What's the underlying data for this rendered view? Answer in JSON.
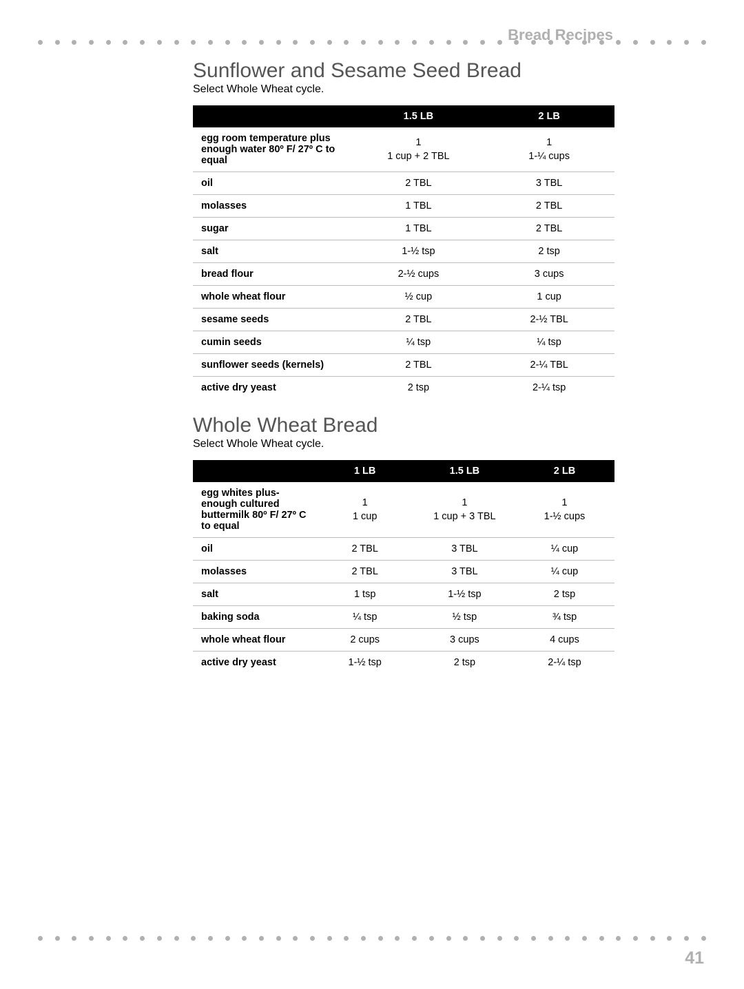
{
  "page": {
    "header_label": "Bread Recipes",
    "page_number": "41",
    "dot_color": "#b0b0b0",
    "dot_count": 40
  },
  "recipe1": {
    "title": "Sunflower and Sesame Seed Bread",
    "subtitle": "Select Whole Wheat cycle.",
    "columns": [
      "",
      "1.5 LB",
      "2 LB"
    ],
    "col_widths": [
      "38%",
      "31%",
      "31%"
    ],
    "rows": [
      {
        "ingredient": "egg room temperature plus enough water 80º F/ 27º C to equal",
        "c15": [
          "1",
          "1 cup + 2 TBL"
        ],
        "c2": [
          "1",
          "1-¼ cups"
        ]
      },
      {
        "ingredient": "oil",
        "c15": "2 TBL",
        "c2": "3 TBL"
      },
      {
        "ingredient": "molasses",
        "c15": "1 TBL",
        "c2": "2 TBL"
      },
      {
        "ingredient": "sugar",
        "c15": "1 TBL",
        "c2": "2 TBL"
      },
      {
        "ingredient": "salt",
        "c15": "1-½ tsp",
        "c2": "2 tsp"
      },
      {
        "ingredient": "bread flour",
        "c15": "2-½ cups",
        "c2": "3 cups"
      },
      {
        "ingredient": "whole wheat flour",
        "c15": "½ cup",
        "c2": "1 cup"
      },
      {
        "ingredient": "sesame seeds",
        "c15": "2 TBL",
        "c2": "2-½ TBL"
      },
      {
        "ingredient": "cumin seeds",
        "c15": "¼ tsp",
        "c2": "¼ tsp"
      },
      {
        "ingredient": "sunflower seeds (kernels)",
        "c15": "2 TBL",
        "c2": "2-¼ TBL"
      },
      {
        "ingredient": "active dry yeast",
        "c15": "2 tsp",
        "c2": "2-¼ tsp"
      }
    ]
  },
  "recipe2": {
    "title": "Whole Wheat Bread",
    "subtitle": "Select Whole Wheat cycle.",
    "columns": [
      "",
      "1 LB",
      "1.5 LB",
      "2 LB"
    ],
    "col_widths": [
      "29%",
      "23.6%",
      "23.7%",
      "23.7%"
    ],
    "rows": [
      {
        "ingredient": "egg whites plus- enough cultured buttermilk 80º F/ 27º C to equal",
        "c1": [
          "1",
          "1 cup"
        ],
        "c15": [
          "1",
          "1 cup + 3 TBL"
        ],
        "c2": [
          "1",
          "1-½ cups"
        ]
      },
      {
        "ingredient": "oil",
        "c1": "2 TBL",
        "c15": "3 TBL",
        "c2": "¼ cup"
      },
      {
        "ingredient": "molasses",
        "c1": "2 TBL",
        "c15": "3 TBL",
        "c2": "¼ cup"
      },
      {
        "ingredient": "salt",
        "c1": "1 tsp",
        "c15": "1-½ tsp",
        "c2": "2 tsp"
      },
      {
        "ingredient": "baking soda",
        "c1": "¼ tsp",
        "c15": "½ tsp",
        "c2": "¾ tsp"
      },
      {
        "ingredient": "whole wheat flour",
        "c1": "2 cups",
        "c15": "3 cups",
        "c2": "4 cups"
      },
      {
        "ingredient": "active dry yeast",
        "c1": "1-½ tsp",
        "c15": "2 tsp",
        "c2": "2-¼ tsp"
      }
    ]
  },
  "styling": {
    "title_color": "#555555",
    "header_bg": "#000000",
    "header_fg": "#ffffff",
    "row_border": "#bcbcbc"
  }
}
